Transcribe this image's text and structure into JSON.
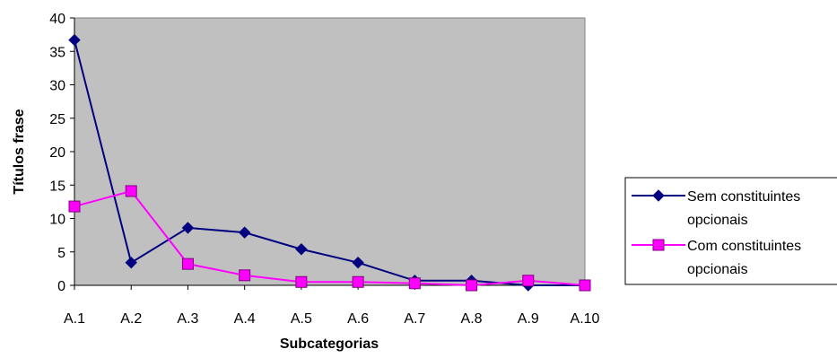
{
  "chart_data": {
    "type": "line",
    "xlabel": "Subcategorias",
    "ylabel": "Títulos frase",
    "categories": [
      "A.1",
      "A.2",
      "A.3",
      "A.4",
      "A.5",
      "A.6",
      "A.7",
      "A.8",
      "A.9",
      "A.10"
    ],
    "ylim": [
      0,
      40
    ],
    "yticks": [
      0,
      5,
      10,
      15,
      20,
      25,
      30,
      35,
      40
    ],
    "grid": false,
    "plot_background": "#c0c0c0",
    "legend_position": "right",
    "series": [
      {
        "name": "Sem constituintes opcionais",
        "legend_lines": [
          "Sem constituintes",
          "opcionais"
        ],
        "color": "#000080",
        "marker": "diamond",
        "values": [
          36.7,
          3.4,
          8.6,
          7.9,
          5.4,
          3.4,
          0.7,
          0.7,
          0.0,
          0.0
        ]
      },
      {
        "name": "Com constituintes opcionais",
        "legend_lines": [
          "Com constituintes",
          "opcionais"
        ],
        "color": "#ff00ff",
        "marker": "square",
        "values": [
          11.8,
          14.1,
          3.2,
          1.5,
          0.5,
          0.5,
          0.3,
          0.0,
          0.7,
          0.0
        ]
      }
    ]
  }
}
